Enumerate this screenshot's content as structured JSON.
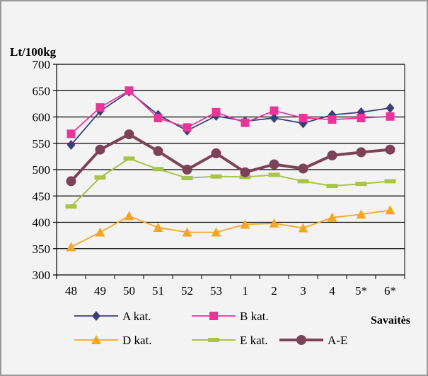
{
  "chart_data": {
    "type": "line",
    "title": "",
    "ylabel": "Lt/100kg",
    "xlabel": "Savaitės",
    "ylim": [
      300,
      700
    ],
    "yticks": [
      300,
      350,
      400,
      450,
      500,
      550,
      600,
      650,
      700
    ],
    "grid": true,
    "legend_position": "bottom",
    "categories": [
      "48",
      "49",
      "50",
      "51",
      "52",
      "53",
      "1",
      "2",
      "3",
      "4",
      "5*",
      "6*"
    ],
    "series": [
      {
        "name": "A kat.",
        "color": "#3b3f78",
        "marker": "diamond",
        "values": [
          547,
          611,
          648,
          604,
          574,
          602,
          592,
          598,
          588,
          604,
          609,
          617
        ]
      },
      {
        "name": "B kat.",
        "color": "#e8359a",
        "marker": "square",
        "values": [
          568,
          618,
          650,
          598,
          580,
          609,
          589,
          612,
          598,
          595,
          598,
          601
        ]
      },
      {
        "name": "D kat.",
        "color": "#f5a623",
        "marker": "triangle",
        "values": [
          353,
          381,
          412,
          390,
          381,
          381,
          396,
          398,
          389,
          409,
          415,
          423
        ]
      },
      {
        "name": "E kat.",
        "color": "#a8c44a",
        "marker": "dash",
        "values": [
          430,
          485,
          521,
          501,
          484,
          487,
          486,
          490,
          478,
          469,
          473,
          478
        ]
      },
      {
        "name": "A-E",
        "color": "#7d4257",
        "marker": "circle",
        "values": [
          478,
          538,
          567,
          535,
          500,
          531,
          495,
          510,
          502,
          527,
          533,
          538
        ]
      }
    ]
  }
}
